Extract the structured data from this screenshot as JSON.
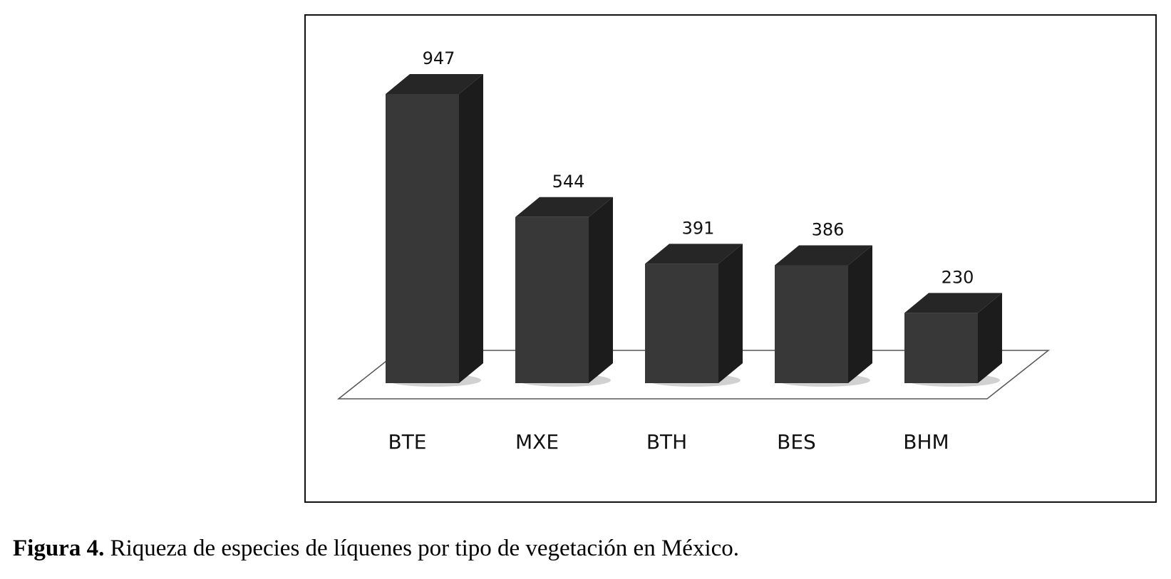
{
  "chart_data": {
    "type": "bar",
    "style": "3d-column",
    "categories": [
      "BTE",
      "MXE",
      "BTH",
      "BES",
      "BHM"
    ],
    "values": [
      947,
      544,
      391,
      386,
      230
    ],
    "title": "",
    "xlabel": "",
    "ylabel": "",
    "ylim": [
      0,
      947
    ],
    "grid": false,
    "legend": "none",
    "data_labels": true,
    "colors": {
      "bar_front": "#383838",
      "bar_top": "#262626",
      "bar_side": "#1c1c1c",
      "floor_stroke": "#555555"
    }
  },
  "caption": {
    "label": "Figura 4.",
    "text": " Riqueza de especies de líquenes por tipo de vegetación en México."
  }
}
